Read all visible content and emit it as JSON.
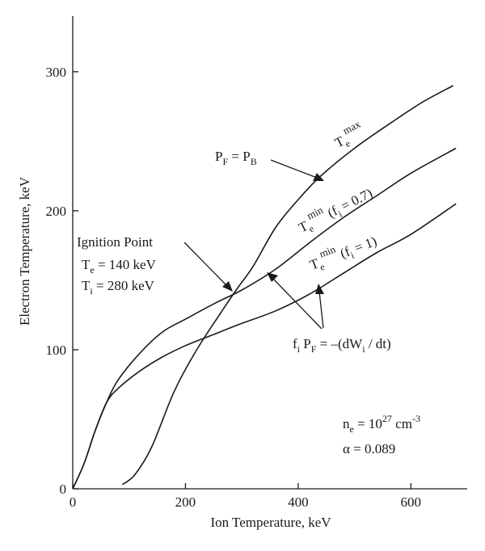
{
  "chart_data": {
    "type": "line",
    "xlabel": "Ion Temperature, keV",
    "ylabel": "Electron Temperature, keV",
    "xlim": [
      0,
      700
    ],
    "ylim": [
      0,
      340
    ],
    "x_ticks": [
      0,
      200,
      400,
      600
    ],
    "y_ticks": [
      0,
      100,
      200,
      300
    ],
    "grid": false,
    "series": [
      {
        "id": "te_max",
        "points": [
          [
            88,
            3
          ],
          [
            110,
            10
          ],
          [
            140,
            30
          ],
          [
            180,
            70
          ],
          [
            220,
            100
          ],
          [
            260,
            125
          ],
          [
            290,
            143
          ],
          [
            320,
            160
          ],
          [
            360,
            188
          ],
          [
            400,
            208
          ],
          [
            440,
            225
          ],
          [
            500,
            245
          ],
          [
            560,
            262
          ],
          [
            620,
            278
          ],
          [
            675,
            290
          ]
        ]
      },
      {
        "id": "te_min_fi07",
        "points": [
          [
            0,
            0
          ],
          [
            20,
            18
          ],
          [
            40,
            42
          ],
          [
            60,
            62
          ],
          [
            80,
            78
          ],
          [
            120,
            98
          ],
          [
            160,
            113
          ],
          [
            200,
            122
          ],
          [
            250,
            133
          ],
          [
            300,
            143
          ],
          [
            360,
            158
          ],
          [
            420,
            177
          ],
          [
            480,
            195
          ],
          [
            540,
            211
          ],
          [
            600,
            227
          ],
          [
            680,
            245
          ]
        ]
      },
      {
        "id": "te_min_fi1",
        "points": [
          [
            0,
            0
          ],
          [
            20,
            18
          ],
          [
            40,
            42
          ],
          [
            60,
            62
          ],
          [
            80,
            72
          ],
          [
            120,
            85
          ],
          [
            160,
            95
          ],
          [
            200,
            103
          ],
          [
            250,
            111
          ],
          [
            300,
            119
          ],
          [
            360,
            128
          ],
          [
            420,
            140
          ],
          [
            480,
            155
          ],
          [
            540,
            170
          ],
          [
            600,
            183
          ],
          [
            680,
            205
          ]
        ]
      }
    ],
    "annotations": {
      "te_max": {
        "base": "T",
        "sub": "e",
        "sup": "max"
      },
      "te_min_fi07": {
        "base": "T",
        "sub": "e",
        "sup": "min",
        "tail": " (f",
        "tail_sub": "i",
        "tail_end": " = 0.7)"
      },
      "te_min_fi1": {
        "base": "T",
        "sub": "e",
        "sup": "min",
        "tail": " (f",
        "tail_sub": "i",
        "tail_end": " = 1)"
      },
      "pf_pb": {
        "p1": "P",
        "s1": "F",
        "mid": " = P",
        "s2": "B"
      },
      "ignition": {
        "title": "Ignition Point",
        "te_base": "T",
        "te_sub": "e",
        "te_val": " = 140 keV",
        "ti_base": "T",
        "ti_sub": "i",
        "ti_val": " = 280 keV"
      },
      "balance": {
        "f": "f",
        "f_sub": "i",
        "p": " P",
        "p_sub": "F",
        "rest": " = –(dW",
        "w_sub": "i",
        "end": " / dt)"
      },
      "density": {
        "n": "n",
        "n_sub": "e",
        "eq": " = 10",
        "exp": "27",
        "unit": " cm",
        "unit_exp": "-3"
      },
      "alpha": "α = 0.089"
    }
  }
}
